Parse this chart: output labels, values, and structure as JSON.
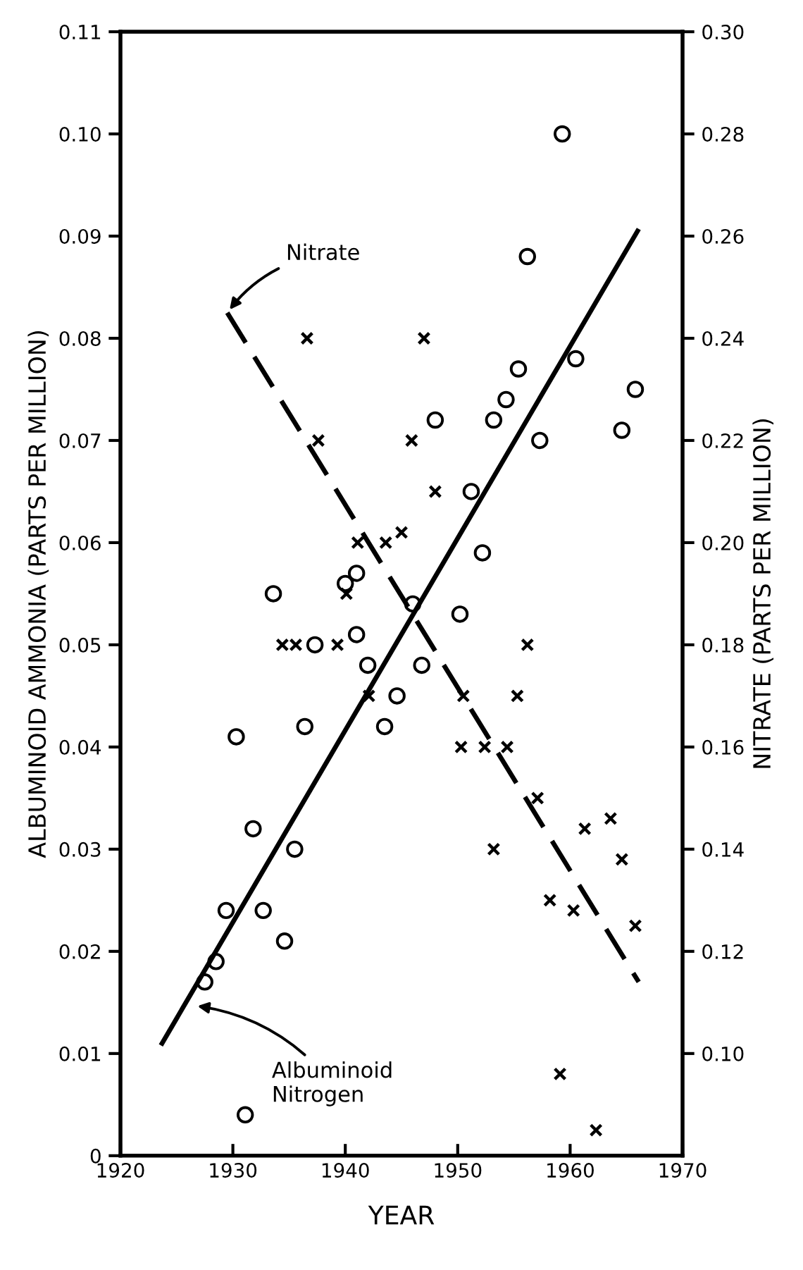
{
  "chart_data": {
    "type": "scatter",
    "xlabel": "YEAR",
    "ylabel": "ALBUMINOID AMMONIA (PARTS PER MILLION)",
    "y2label": "NITRATE (PARTS PER MILLION)",
    "xlim": [
      1920,
      1970
    ],
    "xticks": [
      1920,
      1930,
      1940,
      1950,
      1960,
      1970
    ],
    "ylim": [
      0,
      0.11
    ],
    "yticks": [
      0,
      0.01,
      0.02,
      0.03,
      0.04,
      0.05,
      0.06,
      0.07,
      0.08,
      0.09,
      {
        "value": 0.1,
        "label": "0.10"
      },
      {
        "value": 0.11,
        "label": "0.11"
      }
    ],
    "y2lim": [
      0.08,
      0.3
    ],
    "y2ticks": [
      {
        "value": 0.1,
        "label": "0.10"
      },
      {
        "value": 0.12,
        "label": "0.12"
      },
      {
        "value": 0.14,
        "label": "0.14"
      },
      {
        "value": 0.16,
        "label": "0.16"
      },
      {
        "value": 0.18,
        "label": "0.18"
      },
      {
        "value": 0.2,
        "label": "0.20"
      },
      {
        "value": 0.22,
        "label": "0.22"
      },
      {
        "value": 0.24,
        "label": "0.24"
      },
      {
        "value": 0.26,
        "label": "0.26"
      },
      {
        "value": 0.28,
        "label": "0.28"
      },
      {
        "value": 0.3,
        "label": "0.30"
      }
    ],
    "grid": false,
    "legend": false,
    "series": [
      {
        "marker": "circle",
        "color": "#000000",
        "x": [
          1933.6,
          1930.3,
          1936.4,
          1931.8,
          1935.5,
          1929.4,
          1932.7,
          1934.6,
          1928.5,
          1927.5,
          1931.1,
          1937.3,
          1941.0,
          1942.0,
          1943.5,
          1940.0,
          1941.0,
          1959.3,
          1956.2,
          1960.5,
          1955.4,
          1954.3,
          1953.2,
          1948.0,
          1965.8,
          1964.6,
          1957.3,
          1951.2,
          1952.2,
          1946.0,
          1944.6,
          1950.2,
          1946.8
        ],
        "values": [
          0.055,
          0.041,
          0.042,
          0.032,
          0.03,
          0.024,
          0.024,
          0.021,
          0.019,
          0.017,
          0.004,
          0.05,
          0.051,
          0.048,
          0.042,
          0.056,
          0.057,
          0.1,
          0.088,
          0.078,
          0.077,
          0.074,
          0.072,
          0.072,
          0.075,
          0.071,
          0.07,
          0.065,
          0.059,
          0.054,
          0.045,
          0.053,
          0.048
        ]
      },
      {
        "marker": "cross",
        "axis": "y2",
        "color": "#000000",
        "x": [
          1936.6,
          1937.6,
          1941.1,
          1934.4,
          1935.6,
          1939.3,
          1940.1,
          1942.1,
          1947.0,
          1945.9,
          1948.0,
          1943.6,
          1945.0,
          1950.5,
          1955.3,
          1956.2,
          1950.3,
          1952.4,
          1954.4,
          1957.1,
          1953.2,
          1961.3,
          1963.6,
          1964.6,
          1958.2,
          1960.3,
          1965.8,
          1959.1,
          1962.3
        ],
        "values": [
          0.24,
          0.22,
          0.2,
          0.18,
          0.18,
          0.18,
          0.19,
          0.17,
          0.24,
          0.22,
          0.21,
          0.2,
          0.202,
          0.17,
          0.17,
          0.18,
          0.16,
          0.16,
          0.16,
          0.15,
          0.14,
          0.144,
          0.146,
          0.138,
          0.13,
          0.128,
          0.125,
          0.096,
          0.085
        ]
      },
      {
        "type": "line",
        "line_style": "solid",
        "color": "#000000",
        "x": [
          1923.7,
          1966.0
        ],
        "values": [
          0.011,
          0.0905
        ]
      },
      {
        "type": "line",
        "line_style": "dashed",
        "axis": "y2",
        "color": "#000000",
        "x": [
          1929.5,
          1966.1
        ],
        "values": [
          0.245,
          0.114
        ]
      }
    ],
    "annotations": [
      {
        "text": "Nitrate",
        "x": 1929.5,
        "y": 0.0825
      },
      {
        "text": "Albuminoid\nNitrogen",
        "x": 1926.5,
        "y": 0.0147
      }
    ]
  }
}
